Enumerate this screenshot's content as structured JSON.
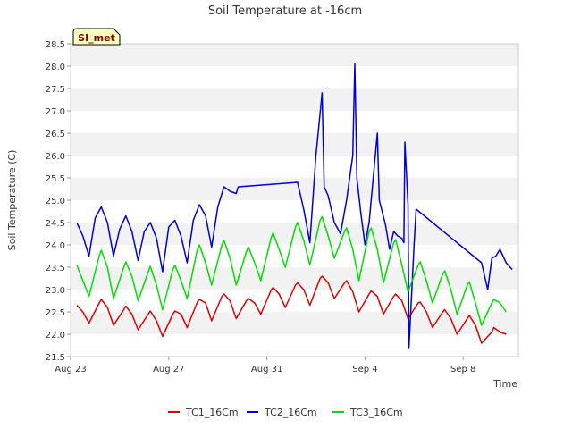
{
  "chart_data": {
    "type": "line",
    "title": "Soil Temperature at -16cm",
    "xlabel": "Time",
    "ylabel": "Soil Temperature (C)",
    "badge": "SI_met",
    "ylim": [
      21.5,
      28.5
    ],
    "yticks": [
      "21.5",
      "22.0",
      "22.5",
      "23.0",
      "23.5",
      "24.0",
      "24.5",
      "25.0",
      "25.5",
      "26.0",
      "26.5",
      "27.0",
      "27.5",
      "28.0",
      "28.5"
    ],
    "xlim": [
      "2023-08-23",
      "2023-09-10T06:00"
    ],
    "xticks": [
      {
        "label": "Aug 23",
        "date": "2023-08-23"
      },
      {
        "label": "Aug 27",
        "date": "2023-08-27"
      },
      {
        "label": "Aug 31",
        "date": "2023-08-31"
      },
      {
        "label": "Sep 4",
        "date": "2023-09-04"
      },
      {
        "label": "Sep 8",
        "date": "2023-09-08"
      }
    ],
    "grid": "horizontal alternating bands",
    "legend_position": "bottom",
    "series": [
      {
        "name": "TC1_16Cm",
        "color": "#dd0000",
        "points": [
          [
            "2023-08-23T06:00",
            22.65
          ],
          [
            "2023-08-23T12:00",
            22.5
          ],
          [
            "2023-08-23T18:00",
            22.25
          ],
          [
            "2023-08-24T04:00",
            22.7
          ],
          [
            "2023-08-24T06:00",
            22.78
          ],
          [
            "2023-08-24T12:00",
            22.6
          ],
          [
            "2023-08-24T18:00",
            22.2
          ],
          [
            "2023-08-25T04:00",
            22.55
          ],
          [
            "2023-08-25T06:00",
            22.63
          ],
          [
            "2023-08-25T12:00",
            22.45
          ],
          [
            "2023-08-25T18:00",
            22.1
          ],
          [
            "2023-08-26T04:00",
            22.45
          ],
          [
            "2023-08-26T06:00",
            22.52
          ],
          [
            "2023-08-26T12:00",
            22.3
          ],
          [
            "2023-08-26T18:00",
            21.95
          ],
          [
            "2023-08-27T04:00",
            22.45
          ],
          [
            "2023-08-27T06:00",
            22.52
          ],
          [
            "2023-08-27T12:00",
            22.45
          ],
          [
            "2023-08-27T18:00",
            22.15
          ],
          [
            "2023-08-28T04:00",
            22.72
          ],
          [
            "2023-08-28T06:00",
            22.78
          ],
          [
            "2023-08-28T12:00",
            22.7
          ],
          [
            "2023-08-28T18:00",
            22.3
          ],
          [
            "2023-08-29T04:00",
            22.85
          ],
          [
            "2023-08-29T06:00",
            22.9
          ],
          [
            "2023-08-29T12:00",
            22.75
          ],
          [
            "2023-08-29T18:00",
            22.35
          ],
          [
            "2023-08-30T04:00",
            22.75
          ],
          [
            "2023-08-30T06:00",
            22.8
          ],
          [
            "2023-08-30T12:00",
            22.7
          ],
          [
            "2023-08-30T18:00",
            22.45
          ],
          [
            "2023-08-31T04:00",
            22.98
          ],
          [
            "2023-08-31T06:00",
            23.05
          ],
          [
            "2023-08-31T12:00",
            22.9
          ],
          [
            "2023-08-31T18:00",
            22.6
          ],
          [
            "2023-09-01T04:00",
            23.1
          ],
          [
            "2023-09-01T06:00",
            23.15
          ],
          [
            "2023-09-01T12:00",
            23.0
          ],
          [
            "2023-09-01T18:00",
            22.65
          ],
          [
            "2023-09-02T04:00",
            23.25
          ],
          [
            "2023-09-02T06:00",
            23.3
          ],
          [
            "2023-09-02T12:00",
            23.15
          ],
          [
            "2023-09-02T18:00",
            22.8
          ],
          [
            "2023-09-03T04:00",
            23.15
          ],
          [
            "2023-09-03T06:00",
            23.2
          ],
          [
            "2023-09-03T12:00",
            22.95
          ],
          [
            "2023-09-03T18:00",
            22.5
          ],
          [
            "2023-09-04T04:00",
            22.9
          ],
          [
            "2023-09-04T06:00",
            22.97
          ],
          [
            "2023-09-04T12:00",
            22.85
          ],
          [
            "2023-09-04T18:00",
            22.45
          ],
          [
            "2023-09-05T04:00",
            22.85
          ],
          [
            "2023-09-05T06:00",
            22.9
          ],
          [
            "2023-09-05T12:00",
            22.75
          ],
          [
            "2023-09-05T18:00",
            22.35
          ],
          [
            "2023-09-06T04:00",
            22.7
          ],
          [
            "2023-09-06T06:00",
            22.72
          ],
          [
            "2023-09-06T12:00",
            22.5
          ],
          [
            "2023-09-06T18:00",
            22.15
          ],
          [
            "2023-09-07T04:00",
            22.5
          ],
          [
            "2023-09-07T06:00",
            22.55
          ],
          [
            "2023-09-07T12:00",
            22.35
          ],
          [
            "2023-09-07T18:00",
            22.0
          ],
          [
            "2023-09-08T04:00",
            22.35
          ],
          [
            "2023-09-08T06:00",
            22.42
          ],
          [
            "2023-09-08T12:00",
            22.2
          ],
          [
            "2023-09-08T18:00",
            21.8
          ],
          [
            "2023-09-09T04:00",
            22.05
          ],
          [
            "2023-09-09T06:00",
            22.15
          ],
          [
            "2023-09-09T12:00",
            22.05
          ],
          [
            "2023-09-09T18:00",
            22.0
          ]
        ]
      },
      {
        "name": "TC2_16Cm",
        "color": "#0000dd",
        "points": [
          [
            "2023-08-23T06:00",
            24.5
          ],
          [
            "2023-08-23T12:00",
            24.2
          ],
          [
            "2023-08-23T18:00",
            23.75
          ],
          [
            "2023-08-24T00:00",
            24.6
          ],
          [
            "2023-08-24T06:00",
            24.85
          ],
          [
            "2023-08-24T12:00",
            24.5
          ],
          [
            "2023-08-24T18:00",
            23.75
          ],
          [
            "2023-08-25T00:00",
            24.35
          ],
          [
            "2023-08-25T06:00",
            24.65
          ],
          [
            "2023-08-25T12:00",
            24.3
          ],
          [
            "2023-08-25T18:00",
            23.65
          ],
          [
            "2023-08-26T00:00",
            24.3
          ],
          [
            "2023-08-26T06:00",
            24.5
          ],
          [
            "2023-08-26T12:00",
            24.15
          ],
          [
            "2023-08-26T18:00",
            23.4
          ],
          [
            "2023-08-27T00:00",
            24.4
          ],
          [
            "2023-08-27T06:00",
            24.55
          ],
          [
            "2023-08-27T12:00",
            24.2
          ],
          [
            "2023-08-27T18:00",
            23.6
          ],
          [
            "2023-08-28T00:00",
            24.55
          ],
          [
            "2023-08-28T06:00",
            24.9
          ],
          [
            "2023-08-28T12:00",
            24.65
          ],
          [
            "2023-08-28T18:00",
            23.95
          ],
          [
            "2023-08-29T00:00",
            24.85
          ],
          [
            "2023-08-29T06:00",
            25.3
          ],
          [
            "2023-08-29T12:00",
            25.2
          ],
          [
            "2023-08-29T18:00",
            25.15
          ],
          [
            "2023-08-29T20:00",
            25.3
          ],
          [
            "2023-09-01T06:00",
            25.4
          ],
          [
            "2023-09-01T12:00",
            24.8
          ],
          [
            "2023-09-01T18:00",
            24.05
          ],
          [
            "2023-09-02T00:00",
            26.0
          ],
          [
            "2023-09-02T06:00",
            27.4
          ],
          [
            "2023-09-02T08:00",
            25.3
          ],
          [
            "2023-09-02T12:00",
            25.1
          ],
          [
            "2023-09-02T18:00",
            24.5
          ],
          [
            "2023-09-03T00:00",
            24.25
          ],
          [
            "2023-09-03T06:00",
            25.0
          ],
          [
            "2023-09-03T12:00",
            26.0
          ],
          [
            "2023-09-03T14:00",
            28.05
          ],
          [
            "2023-09-03T16:00",
            25.5
          ],
          [
            "2023-09-03T20:00",
            24.7
          ],
          [
            "2023-09-04T00:00",
            24.0
          ],
          [
            "2023-09-04T04:00",
            24.5
          ],
          [
            "2023-09-04T12:00",
            26.5
          ],
          [
            "2023-09-04T14:00",
            25.0
          ],
          [
            "2023-09-04T20:00",
            24.45
          ],
          [
            "2023-09-05T00:00",
            23.9
          ],
          [
            "2023-09-05T04:00",
            24.3
          ],
          [
            "2023-09-05T08:00",
            24.2
          ],
          [
            "2023-09-05T12:00",
            24.15
          ],
          [
            "2023-09-05T14:00",
            24.05
          ],
          [
            "2023-09-05T15:00",
            26.3
          ],
          [
            "2023-09-05T18:00",
            24.9
          ],
          [
            "2023-09-05T19:00",
            21.7
          ],
          [
            "2023-09-06T00:00",
            24.0
          ],
          [
            "2023-09-06T02:00",
            24.8
          ],
          [
            "2023-09-08T18:00",
            23.6
          ],
          [
            "2023-09-09T00:00",
            23.0
          ],
          [
            "2023-09-09T04:00",
            23.7
          ],
          [
            "2023-09-09T08:00",
            23.75
          ],
          [
            "2023-09-09T12:00",
            23.9
          ],
          [
            "2023-09-09T18:00",
            23.6
          ],
          [
            "2023-09-10T00:00",
            23.45
          ]
        ]
      },
      {
        "name": "TC3_16Cm",
        "color": "#00dd00",
        "points": [
          [
            "2023-08-23T06:00",
            23.55
          ],
          [
            "2023-08-23T12:00",
            23.2
          ],
          [
            "2023-08-23T18:00",
            22.85
          ],
          [
            "2023-08-24T04:00",
            23.75
          ],
          [
            "2023-08-24T06:00",
            23.88
          ],
          [
            "2023-08-24T12:00",
            23.5
          ],
          [
            "2023-08-24T18:00",
            22.8
          ],
          [
            "2023-08-25T04:00",
            23.5
          ],
          [
            "2023-08-25T06:00",
            23.62
          ],
          [
            "2023-08-25T12:00",
            23.3
          ],
          [
            "2023-08-25T18:00",
            22.75
          ],
          [
            "2023-08-26T04:00",
            23.4
          ],
          [
            "2023-08-26T06:00",
            23.52
          ],
          [
            "2023-08-26T12:00",
            23.1
          ],
          [
            "2023-08-26T18:00",
            22.55
          ],
          [
            "2023-08-27T04:00",
            23.45
          ],
          [
            "2023-08-27T06:00",
            23.55
          ],
          [
            "2023-08-27T12:00",
            23.2
          ],
          [
            "2023-08-27T18:00",
            22.8
          ],
          [
            "2023-08-28T04:00",
            23.9
          ],
          [
            "2023-08-28T06:00",
            24.0
          ],
          [
            "2023-08-28T12:00",
            23.6
          ],
          [
            "2023-08-28T18:00",
            23.1
          ],
          [
            "2023-08-29T04:00",
            24.0
          ],
          [
            "2023-08-29T06:00",
            24.1
          ],
          [
            "2023-08-29T12:00",
            23.7
          ],
          [
            "2023-08-29T18:00",
            23.1
          ],
          [
            "2023-08-30T04:00",
            23.85
          ],
          [
            "2023-08-30T06:00",
            23.95
          ],
          [
            "2023-08-30T12:00",
            23.6
          ],
          [
            "2023-08-30T18:00",
            23.2
          ],
          [
            "2023-08-31T04:00",
            24.15
          ],
          [
            "2023-08-31T06:00",
            24.27
          ],
          [
            "2023-08-31T12:00",
            23.9
          ],
          [
            "2023-08-31T18:00",
            23.5
          ],
          [
            "2023-09-01T04:00",
            24.4
          ],
          [
            "2023-09-01T06:00",
            24.5
          ],
          [
            "2023-09-01T12:00",
            24.1
          ],
          [
            "2023-09-01T18:00",
            23.55
          ],
          [
            "2023-09-02T04:00",
            24.55
          ],
          [
            "2023-09-02T06:00",
            24.63
          ],
          [
            "2023-09-02T12:00",
            24.2
          ],
          [
            "2023-09-02T18:00",
            23.7
          ],
          [
            "2023-09-03T04:00",
            24.3
          ],
          [
            "2023-09-03T06:00",
            24.38
          ],
          [
            "2023-09-03T12:00",
            23.9
          ],
          [
            "2023-09-03T18:00",
            23.2
          ],
          [
            "2023-09-04T04:00",
            24.3
          ],
          [
            "2023-09-04T06:00",
            24.38
          ],
          [
            "2023-09-04T12:00",
            23.9
          ],
          [
            "2023-09-04T18:00",
            23.15
          ],
          [
            "2023-09-05T04:00",
            24.05
          ],
          [
            "2023-09-05T06:00",
            24.12
          ],
          [
            "2023-09-05T12:00",
            23.55
          ],
          [
            "2023-09-05T18:00",
            22.95
          ],
          [
            "2023-09-06T04:00",
            23.55
          ],
          [
            "2023-09-06T06:00",
            23.62
          ],
          [
            "2023-09-06T12:00",
            23.2
          ],
          [
            "2023-09-06T18:00",
            22.7
          ],
          [
            "2023-09-07T04:00",
            23.35
          ],
          [
            "2023-09-07T06:00",
            23.42
          ],
          [
            "2023-09-07T12:00",
            23.0
          ],
          [
            "2023-09-07T18:00",
            22.45
          ],
          [
            "2023-09-08T04:00",
            23.1
          ],
          [
            "2023-09-08T06:00",
            23.17
          ],
          [
            "2023-09-08T12:00",
            22.7
          ],
          [
            "2023-09-08T18:00",
            22.2
          ],
          [
            "2023-09-09T04:00",
            22.7
          ],
          [
            "2023-09-09T06:00",
            22.78
          ],
          [
            "2023-09-09T12:00",
            22.7
          ],
          [
            "2023-09-09T18:00",
            22.5
          ]
        ]
      }
    ]
  }
}
